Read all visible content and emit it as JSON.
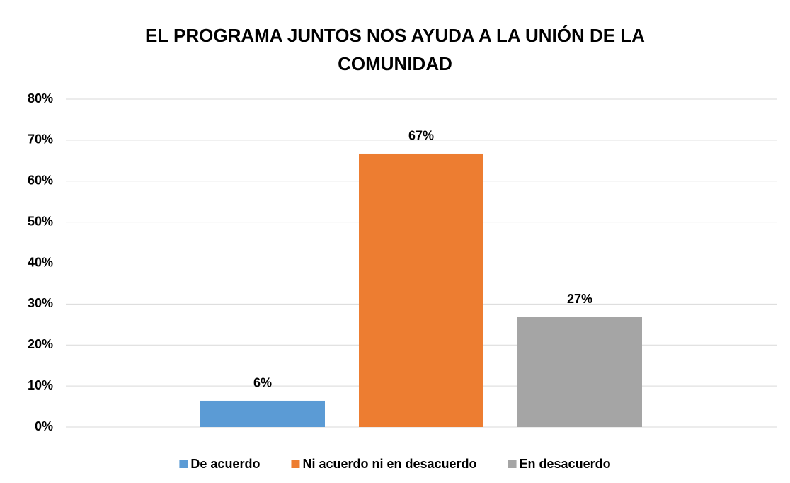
{
  "chart_data": {
    "type": "bar",
    "title": "EL PROGRAMA JUNTOS NOS AYUDA A LA UNIÓN DE LA COMUNIDAD",
    "categories": [
      null
    ],
    "series": [
      {
        "name": "De acuerdo",
        "color": "#5b9bd5",
        "values": [
          6.4
        ],
        "value_labels": [
          "6%"
        ]
      },
      {
        "name": "Ni acuerdo ni en desacuerdo",
        "color": "#ed7d31",
        "values": [
          66.7
        ],
        "value_labels": [
          "67%"
        ]
      },
      {
        "name": "En desacuerdo",
        "color": "#a5a5a5",
        "values": [
          26.9
        ],
        "value_labels": [
          "27%"
        ]
      }
    ],
    "ylim": [
      0,
      80
    ],
    "yticks": [
      {
        "value": 0,
        "label": "0%"
      },
      {
        "value": 10,
        "label": "10%"
      },
      {
        "value": 20,
        "label": "20%"
      },
      {
        "value": 30,
        "label": "30%"
      },
      {
        "value": 40,
        "label": "40%"
      },
      {
        "value": 50,
        "label": "50%"
      },
      {
        "value": 60,
        "label": "60%"
      },
      {
        "value": 70,
        "label": "70%"
      },
      {
        "value": 80,
        "label": "80%"
      }
    ],
    "grid": true,
    "legend": "bottom"
  }
}
